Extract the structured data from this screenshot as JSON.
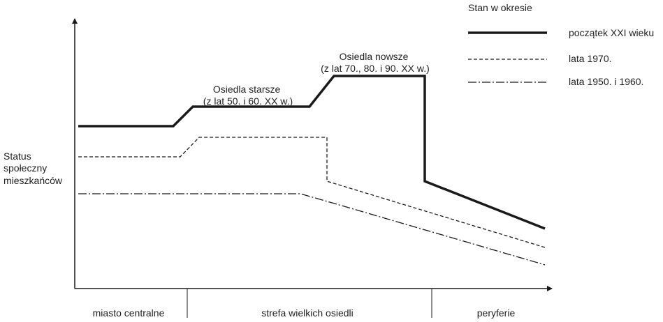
{
  "diagram": {
    "y_label": [
      "Status",
      "społeczny",
      "mieszkańców"
    ],
    "annotations": {
      "older_estates": [
        "Osiedla starsze",
        "(z lat 50. i 60. XX w.)"
      ],
      "newer_estates": [
        "Osiedla nowsze",
        "(z lat 70., 80. i 90. XX w.)"
      ]
    },
    "zones": [
      "miasto centralne",
      "strefa wielkich osiedli",
      "peryferie"
    ],
    "legend": {
      "title": "Stan w okresie",
      "items": [
        {
          "label": "początek XXI wieku",
          "style": "solid-thick"
        },
        {
          "label": "lata 1970.",
          "style": "dashed"
        },
        {
          "label": "lata 1950. i 1960.",
          "style": "dash-dot"
        }
      ]
    },
    "colors": {
      "line": "#1a1a1a",
      "text": "#222222",
      "background": "#ffffff"
    }
  }
}
